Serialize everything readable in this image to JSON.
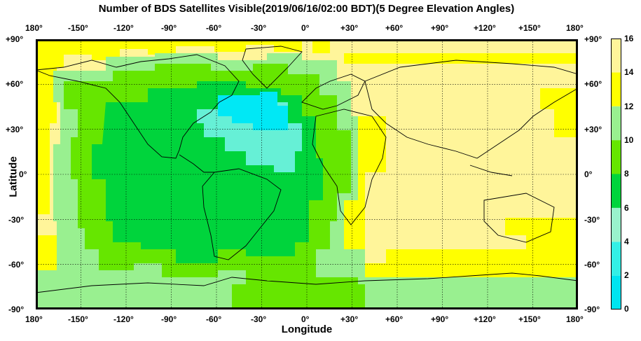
{
  "title": "Number of BDS Satellites Visible(2019/06/16/02:00 BDT)(5 Degree Elevation Angles)",
  "xlabel": "Longitude",
  "ylabel": "Latitude",
  "lon_ticks": [
    "180°",
    "-150°",
    "-120°",
    "-90°",
    "-60°",
    "-30°",
    "0°",
    "+30°",
    "+60°",
    "+90°",
    "+120°",
    "+150°",
    "180°"
  ],
  "lat_ticks_left": [
    "+90°",
    "+60°",
    "+30°",
    "0°",
    "-30°",
    "-60°",
    "-90°"
  ],
  "lat_ticks_right": [
    "+90°",
    "+60°",
    "+30°",
    "0°",
    "-30°",
    "-60°",
    "-90°"
  ],
  "colorbar": {
    "ticks": [
      "16",
      "14",
      "12",
      "10",
      "8",
      "6",
      "4",
      "2",
      "0"
    ],
    "range": [
      0,
      16
    ],
    "bands": [
      {
        "from": 0,
        "to": 2,
        "color": "#00e5f0"
      },
      {
        "from": 2,
        "to": 4,
        "color": "#33f0e6"
      },
      {
        "from": 4,
        "to": 6,
        "color": "#99f2cc"
      },
      {
        "from": 6,
        "to": 8,
        "color": "#00d43c"
      },
      {
        "from": 8,
        "to": 10,
        "color": "#66e600"
      },
      {
        "from": 10,
        "to": 12,
        "color": "#99f090"
      },
      {
        "from": 12,
        "to": 14,
        "color": "#ffff00"
      },
      {
        "from": 14,
        "to": 16,
        "color": "#fff59a"
      }
    ]
  }
}
